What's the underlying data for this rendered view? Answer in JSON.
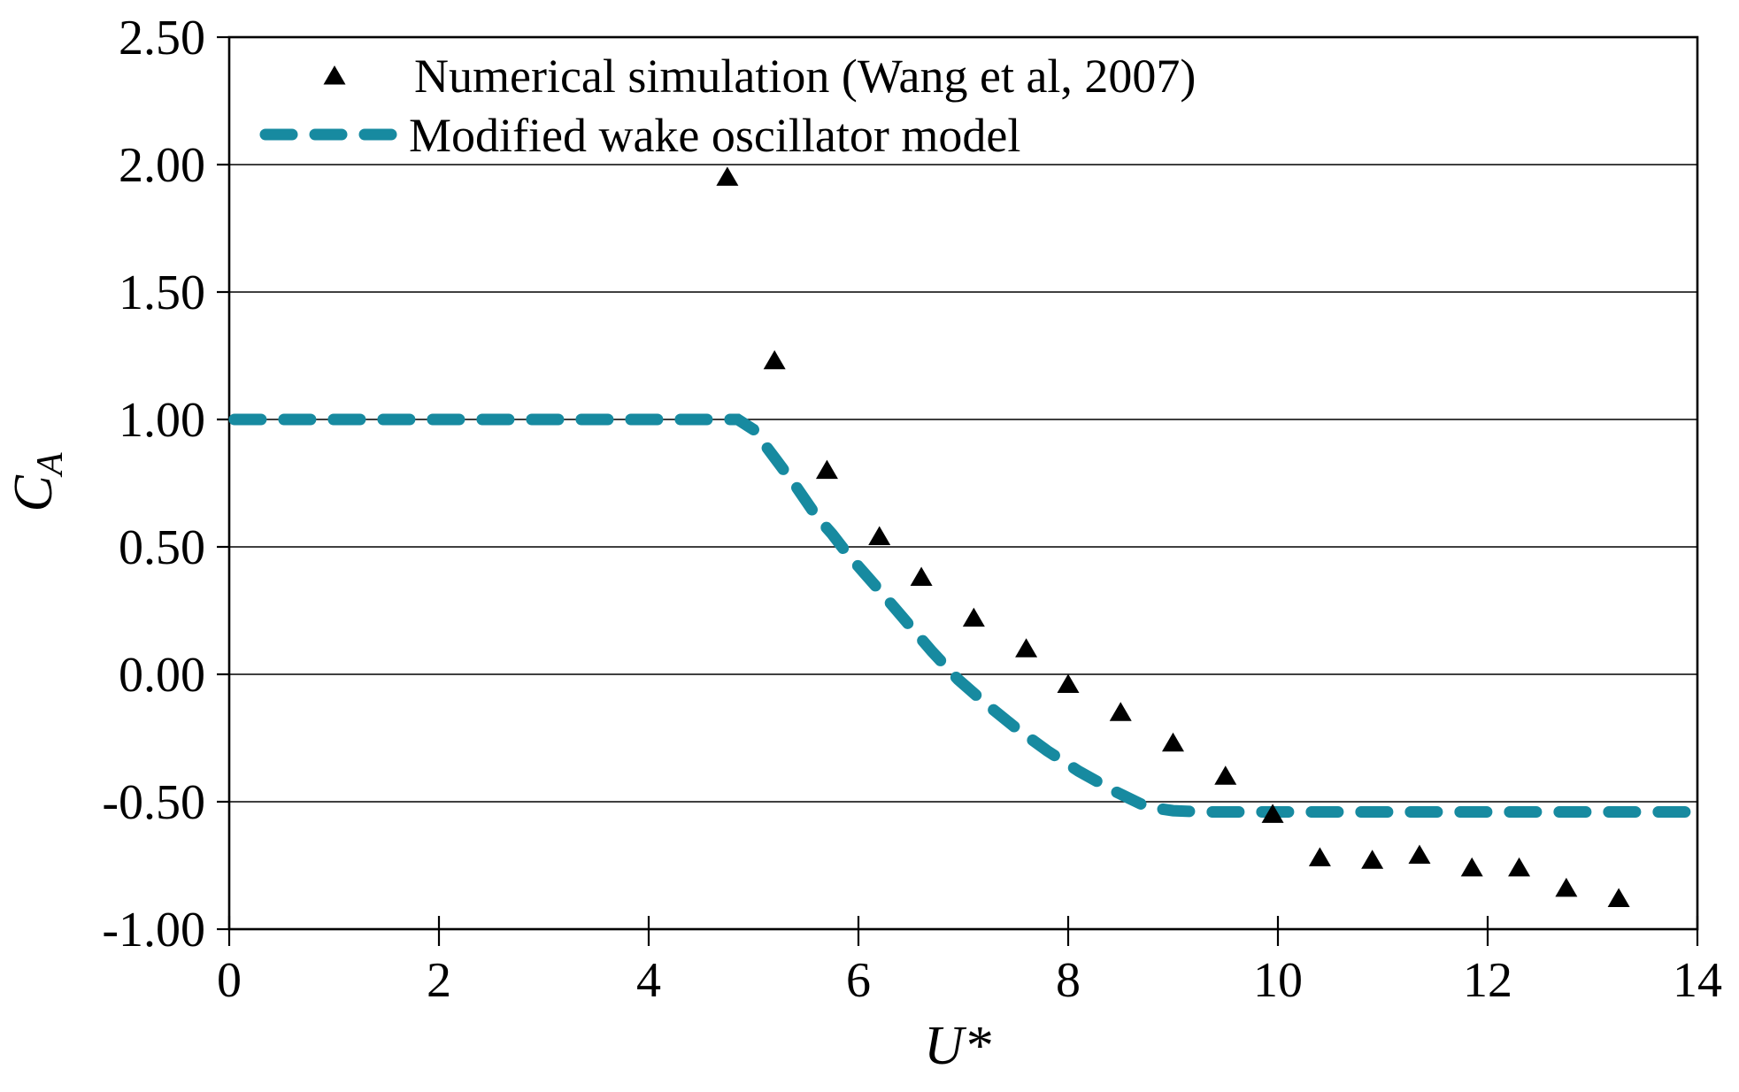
{
  "figure": {
    "background_color": "#ffffff",
    "text_color": "#000000"
  },
  "chart_data": {
    "type": "scatter+line",
    "xlabel": "U*",
    "ylabel_main": "C",
    "ylabel_sub": "A",
    "xlim": [
      0,
      14
    ],
    "ylim": [
      -1.0,
      2.5
    ],
    "x_tick_labels": [
      "0",
      "2",
      "4",
      "6",
      "8",
      "10",
      "12",
      "14"
    ],
    "y_tick_labels": [
      "2.50",
      "2.00",
      "1.50",
      "1.00",
      "0.50",
      "0.00",
      "-0.50",
      "-1.00"
    ],
    "grid": "horizontal",
    "legend_position": "top-left-inside",
    "series": [
      {
        "name": "Numerical simulation (Wang et al, 2007)",
        "type": "scatter",
        "marker": "triangle",
        "color": "#000000",
        "points": [
          [
            4.75,
            1.95
          ],
          [
            5.2,
            1.23
          ],
          [
            5.7,
            0.8
          ],
          [
            6.2,
            0.54
          ],
          [
            6.6,
            0.38
          ],
          [
            7.1,
            0.22
          ],
          [
            7.6,
            0.1
          ],
          [
            8.0,
            -0.04
          ],
          [
            8.5,
            -0.15
          ],
          [
            9.0,
            -0.27
          ],
          [
            9.5,
            -0.4
          ],
          [
            9.95,
            -0.55
          ],
          [
            10.4,
            -0.72
          ],
          [
            10.9,
            -0.73
          ],
          [
            11.35,
            -0.71
          ],
          [
            11.85,
            -0.76
          ],
          [
            12.3,
            -0.76
          ],
          [
            12.75,
            -0.84
          ],
          [
            13.25,
            -0.88
          ]
        ]
      },
      {
        "name": "Modified wake oscillator model",
        "type": "line",
        "line_style": "dashed",
        "color": "#178AA0",
        "points": [
          [
            0.05,
            1.0
          ],
          [
            4.85,
            1.0
          ],
          [
            5.0,
            0.96
          ],
          [
            5.2,
            0.85
          ],
          [
            5.4,
            0.74
          ],
          [
            5.6,
            0.62
          ],
          [
            5.75,
            0.55
          ],
          [
            5.9,
            0.47
          ],
          [
            6.05,
            0.4
          ],
          [
            6.2,
            0.33
          ],
          [
            6.45,
            0.21
          ],
          [
            6.7,
            0.09
          ],
          [
            6.95,
            -0.02
          ],
          [
            7.2,
            -0.11
          ],
          [
            7.5,
            -0.21
          ],
          [
            7.8,
            -0.3
          ],
          [
            8.1,
            -0.38
          ],
          [
            8.45,
            -0.46
          ],
          [
            8.75,
            -0.52
          ],
          [
            9.0,
            -0.535
          ],
          [
            9.3,
            -0.54
          ],
          [
            14.0,
            -0.54
          ]
        ]
      }
    ]
  }
}
